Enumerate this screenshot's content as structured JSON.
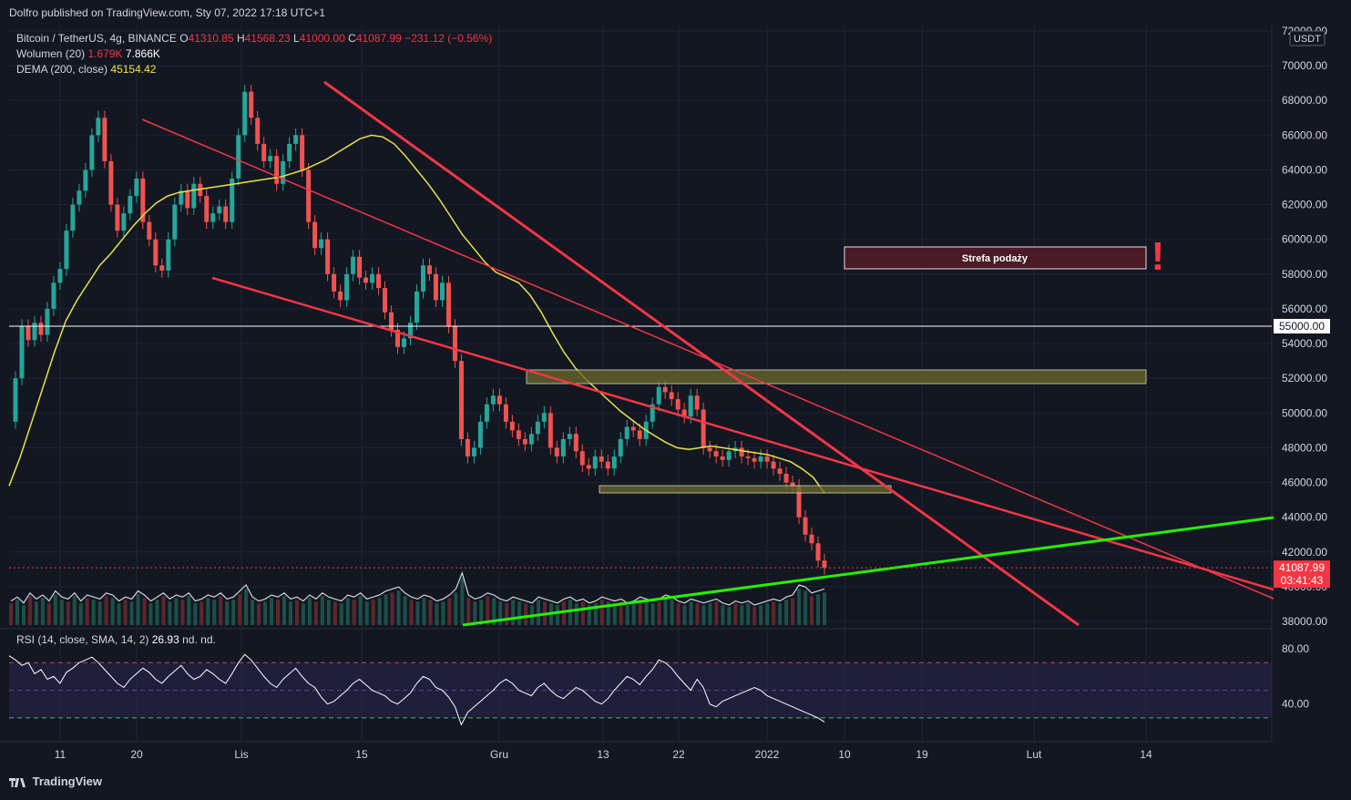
{
  "header": {
    "publisher": "Dolfro published on TradingView.com, Sty 07, 2022 17:18 UTC+1"
  },
  "legend": {
    "symbol": "Bitcoin / TetherUS, 4g, BINANCE",
    "ohlc": {
      "o_label": "O",
      "o": "41310.85",
      "h_label": "H",
      "h": "41568.23",
      "l_label": "L",
      "l": "41000.00",
      "c_label": "C",
      "c": "41087.99",
      "change": "−231.12 (−0.56%)"
    },
    "volume_label": "Wolumen (20)",
    "volume_v1": "1.679K",
    "volume_v2": "7.866K",
    "dema_label": "DEMA (200, close)",
    "dema_value": "45154.42",
    "rsi_label": "RSI (14, close, SMA, 14, 2)",
    "rsi_value": "26.93",
    "rsi_nd1": "nd.",
    "rsi_nd2": "nd."
  },
  "currency_badge": "USDT",
  "annotations": {
    "supply_zone": "Strefa podaży",
    "exclamation": "!"
  },
  "price_badge": {
    "price": "41087.99",
    "timer": "03:41:43",
    "level_55000": "55000.00"
  },
  "footer": {
    "brand": "TradingView"
  },
  "colors": {
    "bg": "#131722",
    "red": "#f23645",
    "green": "#26f000",
    "yellow": "#e8e24a",
    "grid": "#1f2433"
  },
  "chart_data": [
    {
      "type": "line",
      "title": "Bitcoin / TetherUS, 4g, BINANCE",
      "y_ticks": [
        "72000.00",
        "70000.00",
        "68000.00",
        "66000.00",
        "64000.00",
        "62000.00",
        "60000.00",
        "58000.00",
        "56000.00",
        "54000.00",
        "52000.00",
        "50000.00",
        "48000.00",
        "46000.00",
        "44000.00",
        "42000.00",
        "40000.00",
        "38000.00"
      ],
      "x_ticks": [
        "11",
        "20",
        "Lis",
        "15",
        "Gru",
        "13",
        "22",
        "2022",
        "10",
        "19",
        "Lut",
        "14"
      ],
      "ylim": [
        38000,
        72000
      ],
      "series": [
        {
          "values": [
            49500,
            52000,
            55000,
            54200,
            55200,
            54500,
            56000,
            57500,
            58300,
            60500,
            62000,
            62800,
            64000,
            66000,
            67000,
            64500,
            62000,
            60500,
            61500,
            62500,
            63500,
            61000,
            60000,
            58500,
            58200,
            60000,
            62000,
            62800,
            61800,
            63200,
            62500,
            61000,
            61500,
            61900,
            61000,
            63500,
            66000,
            68500,
            67000,
            65500,
            64500,
            64800,
            63200,
            64500,
            65500,
            66000,
            64000,
            61000,
            59500,
            60000,
            58000,
            57000,
            56500,
            58000,
            59000,
            57800,
            57500,
            58000,
            57200,
            55800,
            54800,
            53800,
            54300,
            55200,
            57000,
            58500,
            58000,
            56500,
            57500,
            55000,
            53000,
            48500,
            47500,
            48000,
            49500,
            50500,
            51000,
            50500,
            49500,
            49000,
            48500,
            48200,
            48800,
            49500,
            50000,
            48000,
            47500,
            48500,
            48800,
            47800,
            47000,
            46800,
            47500,
            47200,
            46800,
            47500,
            48500,
            49200,
            49000,
            48500,
            49500,
            50500,
            51500,
            51200,
            50800,
            50200,
            49800,
            51000,
            50200,
            48000,
            47800,
            47500,
            47300,
            47800,
            48000,
            47500,
            47400,
            47200,
            47500,
            47200,
            46800,
            46500,
            46000,
            45800,
            44000,
            43000,
            42500,
            41500,
            41088
          ],
          "name": ""
        },
        {
          "values": [
            45800,
            47500,
            49500,
            51500,
            53500,
            55300,
            56500,
            57500,
            58500,
            59200,
            60000,
            60800,
            61500,
            62100,
            62500,
            62700,
            62800,
            62900,
            63000,
            63100,
            63200,
            63300,
            63400,
            63500,
            63600,
            63800,
            64000,
            64300,
            64600,
            65000,
            65400,
            65800,
            66000,
            65900,
            65500,
            64800,
            64000,
            63200,
            62300,
            61300,
            60300,
            59500,
            58700,
            58100,
            57800,
            57500,
            56800,
            55800,
            54600,
            53500,
            52600,
            51900,
            51300,
            50700,
            50100,
            49600,
            49100,
            48700,
            48300,
            48000,
            47900,
            48000,
            48100,
            48000,
            47900,
            47800,
            47700,
            47600,
            47400,
            47200,
            46800,
            46300,
            45400
          ],
          "name": ""
        },
        {
          "values": [
            1.2,
            1.4,
            1.1,
            1.6,
            1.3,
            1.5,
            1.2,
            1.7,
            1.4,
            1.3,
            1.6,
            1.2,
            1.5,
            1.4,
            1.3,
            1.6,
            1.5,
            1.2,
            1.4,
            1.3,
            1.7,
            1.5,
            1.2,
            1.4,
            1.6,
            1.3,
            1.5,
            1.4,
            1.6,
            1.2,
            1.3,
            1.5,
            1.4,
            1.6,
            1.3,
            1.4,
            1.7,
            2.0,
            1.4,
            1.2,
            1.3,
            1.5,
            1.4,
            1.6,
            1.3,
            1.4,
            1.2,
            1.5,
            1.3,
            1.6,
            1.4,
            1.3,
            1.2,
            1.5,
            1.4,
            1.6,
            1.3,
            1.4,
            1.5,
            1.7,
            1.8,
            1.9,
            1.6,
            1.4,
            1.3,
            1.5,
            1.4,
            1.2,
            1.3,
            1.5,
            1.8,
            2.6,
            1.5,
            1.3,
            1.4,
            1.6,
            1.5,
            1.3,
            1.2,
            1.4,
            1.3,
            1.2,
            1.1,
            1.4,
            1.3,
            1.2,
            1.1,
            1.3,
            1.4,
            1.2,
            1.3,
            1.1,
            1.2,
            1.4,
            1.3,
            1.2,
            1.3,
            1.1,
            1.2,
            1.4,
            1.3,
            1.2,
            1.3,
            1.5,
            1.4,
            1.2,
            1.1,
            1.3,
            1.2,
            1.1,
            1.2,
            1.3,
            1.1,
            1.0,
            1.2,
            1.1,
            1.2,
            1.0,
            1.1,
            1.2,
            1.3,
            1.2,
            1.4,
            1.5,
            2.0,
            1.9,
            1.6,
            1.7,
            1.8
          ],
          "name": ""
        }
      ]
    },
    {
      "type": "line",
      "title": "RSI (14, close, SMA, 14, 2)",
      "y_ticks": [
        "80.00",
        "40.00"
      ],
      "ylim": [
        20,
        90
      ],
      "bands": {
        "upper": 70,
        "middle": 50,
        "lower": 30
      },
      "series": [
        {
          "values": [
            75,
            72,
            68,
            70,
            62,
            65,
            58,
            60,
            55,
            63,
            66,
            70,
            72,
            74,
            70,
            65,
            60,
            55,
            52,
            58,
            62,
            66,
            63,
            58,
            55,
            60,
            64,
            68,
            62,
            58,
            60,
            65,
            62,
            58,
            55,
            62,
            70,
            76,
            72,
            66,
            60,
            55,
            52,
            58,
            62,
            66,
            60,
            55,
            52,
            45,
            40,
            42,
            46,
            50,
            55,
            58,
            54,
            50,
            48,
            46,
            42,
            40,
            44,
            48,
            55,
            60,
            58,
            52,
            50,
            45,
            38,
            25,
            34,
            38,
            42,
            46,
            50,
            55,
            58,
            55,
            50,
            48,
            46,
            52,
            55,
            50,
            46,
            44,
            48,
            52,
            50,
            46,
            42,
            40,
            44,
            50,
            55,
            60,
            58,
            54,
            60,
            65,
            72,
            70,
            66,
            60,
            55,
            50,
            58,
            52,
            40,
            38,
            42,
            44,
            46,
            48,
            50,
            52,
            50,
            46,
            44,
            42,
            40,
            38,
            36,
            34,
            32,
            30,
            27
          ],
          "name": ""
        }
      ]
    }
  ]
}
